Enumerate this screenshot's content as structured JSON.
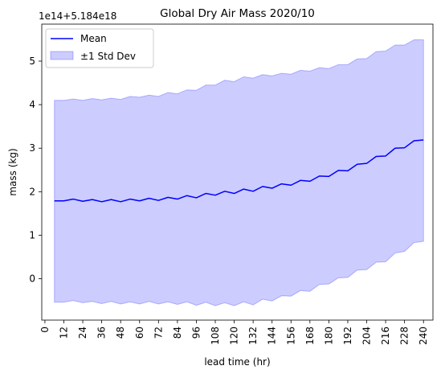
{
  "chart_data": {
    "type": "line",
    "title": "Global Dry Air Mass 2020/10",
    "xlabel": "lead time (hr)",
    "ylabel": "mass (kg)",
    "offset_text": "1e14+5.184e18",
    "xlim": [
      -2,
      246
    ],
    "ylim": [
      -0.95,
      5.85
    ],
    "x_ticks": [
      0,
      12,
      24,
      36,
      48,
      60,
      72,
      84,
      96,
      108,
      120,
      132,
      144,
      156,
      168,
      180,
      192,
      204,
      216,
      228,
      240
    ],
    "y_ticks": [
      0,
      1,
      2,
      3,
      4,
      5
    ],
    "grid": false,
    "legend_position": "upper-left",
    "colors": {
      "mean_line": "#0000ff",
      "band_fill": "#0000ff"
    },
    "x": [
      6,
      12,
      18,
      24,
      30,
      36,
      42,
      48,
      54,
      60,
      66,
      72,
      78,
      84,
      90,
      96,
      102,
      108,
      114,
      120,
      126,
      132,
      138,
      144,
      150,
      156,
      162,
      168,
      174,
      180,
      186,
      192,
      198,
      204,
      210,
      216,
      222,
      228,
      234,
      240
    ],
    "series": [
      {
        "name": "Mean",
        "values": [
          1.79,
          1.79,
          1.83,
          1.78,
          1.82,
          1.77,
          1.82,
          1.77,
          1.83,
          1.79,
          1.85,
          1.8,
          1.87,
          1.83,
          1.91,
          1.86,
          1.96,
          1.92,
          2.01,
          1.96,
          2.06,
          2.01,
          2.12,
          2.08,
          2.18,
          2.15,
          2.26,
          2.24,
          2.36,
          2.35,
          2.49,
          2.48,
          2.63,
          2.65,
          2.81,
          2.82,
          3.0,
          3.01,
          3.17,
          3.19
        ]
      },
      {
        "name": "±1 Std Dev",
        "upper": [
          4.1,
          4.1,
          4.13,
          4.1,
          4.14,
          4.11,
          4.15,
          4.12,
          4.19,
          4.17,
          4.22,
          4.19,
          4.28,
          4.25,
          4.34,
          4.33,
          4.45,
          4.45,
          4.56,
          4.53,
          4.64,
          4.61,
          4.69,
          4.66,
          4.72,
          4.7,
          4.79,
          4.77,
          4.85,
          4.83,
          4.92,
          4.92,
          5.05,
          5.06,
          5.22,
          5.23,
          5.37,
          5.37,
          5.49,
          5.49
        ],
        "lower": [
          -0.54,
          -0.54,
          -0.5,
          -0.55,
          -0.52,
          -0.57,
          -0.52,
          -0.58,
          -0.53,
          -0.58,
          -0.52,
          -0.58,
          -0.53,
          -0.59,
          -0.53,
          -0.61,
          -0.54,
          -0.62,
          -0.55,
          -0.62,
          -0.53,
          -0.6,
          -0.47,
          -0.51,
          -0.39,
          -0.4,
          -0.27,
          -0.29,
          -0.13,
          -0.12,
          0.02,
          0.03,
          0.2,
          0.21,
          0.38,
          0.39,
          0.59,
          0.63,
          0.83,
          0.86
        ]
      }
    ]
  }
}
